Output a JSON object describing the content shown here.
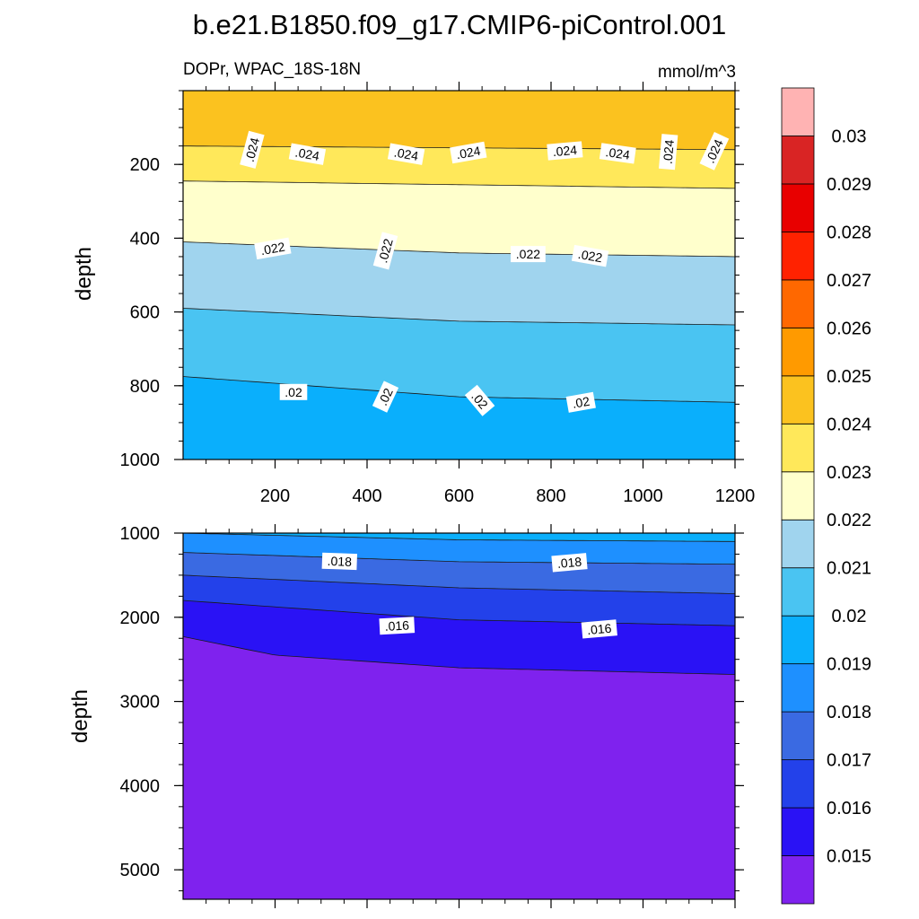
{
  "chart_data": {
    "type": "contour",
    "title": "b.e21.B1850.f09_g17.CMIP6-piControl.001",
    "subtitle_left": "DOPr, WPAC_18S-18N",
    "subtitle_right": "mmol/m^3",
    "ylabel": "depth",
    "xlim": [
      0,
      1200
    ],
    "x_ticks": [
      200,
      400,
      600,
      800,
      1000,
      1200
    ],
    "panels": [
      {
        "name": "upper",
        "ylim": [
          0,
          1000
        ],
        "y_ticks": [
          200,
          400,
          600,
          800,
          1000
        ],
        "bottom_fill": 0.0195,
        "contours": [
          {
            "level": 0.024,
            "x": [
              0,
              1200
            ],
            "depth": [
              150,
              160
            ],
            "fill_above": 0.0245
          },
          {
            "level": 0.023,
            "x": [
              0,
              1200
            ],
            "depth": [
              245,
              265
            ],
            "fill_above": 0.0235
          },
          {
            "level": 0.022,
            "x": [
              0,
              600,
              1200
            ],
            "depth": [
              410,
              440,
              450
            ],
            "fill_above": 0.0225
          },
          {
            "level": 0.021,
            "x": [
              0,
              600,
              1200
            ],
            "depth": [
              590,
              625,
              635
            ],
            "fill_above": 0.0215
          },
          {
            "level": 0.02,
            "x": [
              0,
              600,
              1200
            ],
            "depth": [
              775,
              830,
              845
            ],
            "fill_above": 0.0205
          }
        ],
        "labels": [
          {
            "text": ".024",
            "x": 150,
            "depth": 160,
            "angle": -75
          },
          {
            "text": ".024",
            "x": 270,
            "depth": 172,
            "angle": 10
          },
          {
            "text": ".024",
            "x": 485,
            "depth": 172,
            "angle": 10
          },
          {
            "text": ".024",
            "x": 620,
            "depth": 168,
            "angle": -10
          },
          {
            "text": ".024",
            "x": 830,
            "depth": 163,
            "angle": -5
          },
          {
            "text": ".024",
            "x": 945,
            "depth": 170,
            "angle": 8
          },
          {
            "text": ".024",
            "x": 1055,
            "depth": 166,
            "angle": -85
          },
          {
            "text": ".024",
            "x": 1155,
            "depth": 164,
            "angle": -65
          },
          {
            "text": ".022",
            "x": 195,
            "depth": 428,
            "angle": -10
          },
          {
            "text": ".022",
            "x": 440,
            "depth": 434,
            "angle": -75
          },
          {
            "text": ".022",
            "x": 750,
            "depth": 443,
            "angle": 0
          },
          {
            "text": ".022",
            "x": 885,
            "depth": 448,
            "angle": 10
          },
          {
            "text": ".02",
            "x": 240,
            "depth": 817,
            "angle": 0
          },
          {
            "text": ".02",
            "x": 440,
            "depth": 830,
            "angle": -65
          },
          {
            "text": ".02",
            "x": 645,
            "depth": 840,
            "angle": 50
          },
          {
            "text": ".02",
            "x": 865,
            "depth": 845,
            "angle": -10
          }
        ]
      },
      {
        "name": "lower",
        "ylim": [
          1000,
          5350
        ],
        "y_ticks": [
          1000,
          2000,
          3000,
          4000,
          5000
        ],
        "bottom_fill": 0.0145,
        "contours": [
          {
            "level": 0.019,
            "x": [
              0,
              600,
              1200
            ],
            "depth": [
              1000,
              1080,
              1100
            ],
            "fill_above": 0.0195
          },
          {
            "level": 0.018,
            "x": [
              0,
              600,
              1200
            ],
            "depth": [
              1230,
              1340,
              1370
            ],
            "fill_above": 0.0185
          },
          {
            "level": 0.017,
            "x": [
              0,
              600,
              1200
            ],
            "depth": [
              1500,
              1650,
              1720
            ],
            "fill_above": 0.0175
          },
          {
            "level": 0.016,
            "x": [
              0,
              600,
              1200
            ],
            "depth": [
              1800,
              2030,
              2100
            ],
            "fill_above": 0.0165
          },
          {
            "level": 0.015,
            "x": [
              0,
              200,
              600,
              1200
            ],
            "depth": [
              2230,
              2450,
              2600,
              2680
            ],
            "fill_above": 0.0155
          }
        ],
        "labels": [
          {
            "text": ".018",
            "x": 340,
            "depth": 1335,
            "angle": 2
          },
          {
            "text": ".018",
            "x": 840,
            "depth": 1350,
            "angle": -5
          },
          {
            "text": ".016",
            "x": 465,
            "depth": 2100,
            "angle": -3
          },
          {
            "text": ".016",
            "x": 905,
            "depth": 2140,
            "angle": -5
          }
        ]
      }
    ],
    "colorbar": {
      "boundaries": [
        0.0145,
        0.015,
        0.016,
        0.017,
        0.018,
        0.019,
        0.02,
        0.021,
        0.022,
        0.023,
        0.024,
        0.025,
        0.026,
        0.027,
        0.028,
        0.029,
        0.03,
        0.0305
      ],
      "labels": [
        "0.015",
        "0.016",
        "0.017",
        "0.018",
        "0.019",
        "0.02",
        "0.021",
        "0.022",
        "0.023",
        "0.024",
        "0.025",
        "0.026",
        "0.027",
        "0.028",
        "0.029",
        "0.03"
      ],
      "colors": [
        "#7f22ee",
        "#2a12f5",
        "#2341ea",
        "#3a6ae2",
        "#1e90ff",
        "#0aaffc",
        "#4ac4f2",
        "#a0d4ee",
        "#ffffcc",
        "#ffe85a",
        "#fbc21f",
        "#ff9a00",
        "#ff6800",
        "#ff2200",
        "#e80000",
        "#d92424",
        "#ffb3b3"
      ]
    }
  }
}
